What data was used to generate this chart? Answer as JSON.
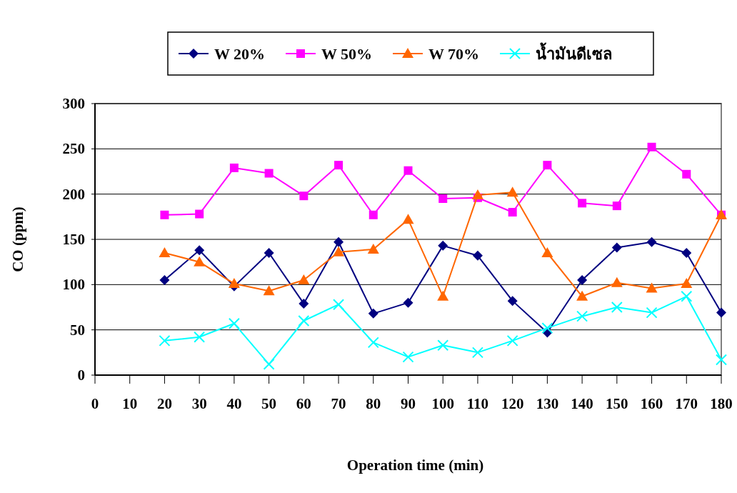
{
  "chart_data": {
    "type": "line",
    "xlabel": "Operation time (min)",
    "ylabel": "CO (ppm)",
    "x": [
      20,
      30,
      40,
      50,
      60,
      70,
      80,
      90,
      100,
      110,
      120,
      130,
      140,
      150,
      160,
      170,
      180
    ],
    "xlim": [
      0,
      180
    ],
    "xticks": [
      0,
      10,
      20,
      30,
      40,
      50,
      60,
      70,
      80,
      90,
      100,
      110,
      120,
      130,
      140,
      150,
      160,
      170,
      180
    ],
    "ylim": [
      0,
      300
    ],
    "yticks": [
      0,
      50,
      100,
      150,
      200,
      250,
      300
    ],
    "grid": "y",
    "legend": "top",
    "line_style": "solid",
    "series": [
      {
        "name": "W 20%",
        "color": "#000080",
        "marker": "diamond",
        "values": [
          105,
          138,
          98,
          135,
          79,
          147,
          68,
          80,
          143,
          132,
          82,
          47,
          105,
          141,
          147,
          135,
          69
        ]
      },
      {
        "name": "W 50%",
        "color": "#ff00ff",
        "marker": "square",
        "values": [
          177,
          178,
          229,
          223,
          198,
          232,
          177,
          226,
          195,
          196,
          180,
          232,
          190,
          187,
          252,
          222,
          177
        ]
      },
      {
        "name": "W 70%",
        "color": "#ff6600",
        "marker": "triangle",
        "values": [
          135,
          125,
          101,
          93,
          105,
          136,
          139,
          172,
          87,
          199,
          202,
          135,
          87,
          102,
          96,
          101,
          177
        ]
      },
      {
        "name": "น้ำมันดีเซล",
        "color": "#00ffff",
        "marker": "cross",
        "values": [
          38,
          42,
          57,
          12,
          60,
          78,
          36,
          20,
          33,
          25,
          38,
          52,
          65,
          75,
          69,
          87,
          17
        ]
      }
    ]
  }
}
